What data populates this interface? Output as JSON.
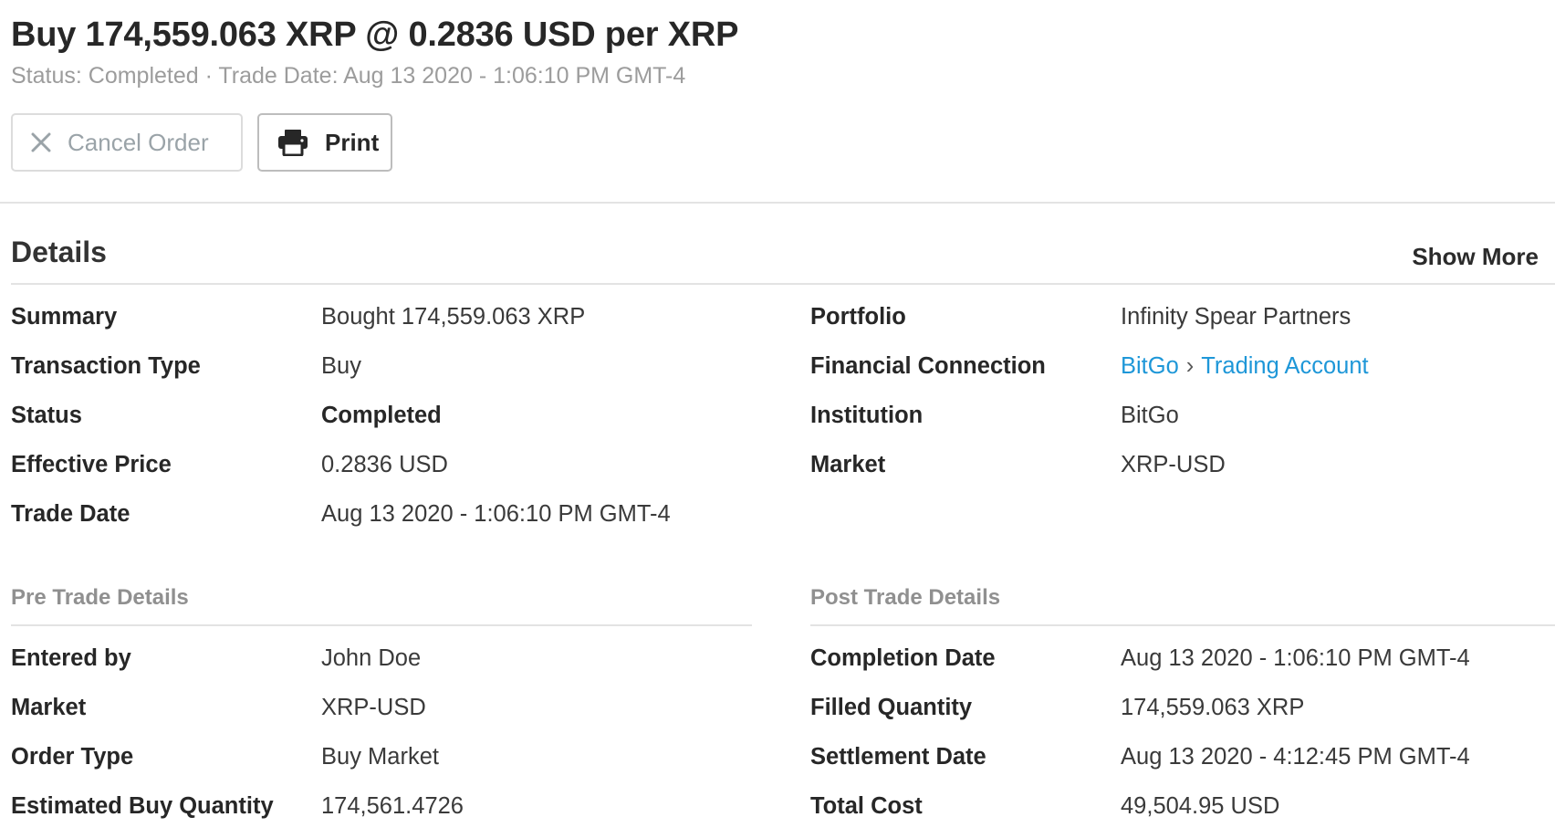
{
  "header": {
    "title": "Buy 174,559.063 XRP @ 0.2836 USD per XRP",
    "subtitle": "Status: Completed · Trade Date: Aug 13 2020 - 1:06:10 PM GMT-4"
  },
  "actions": {
    "cancel_label": "Cancel Order",
    "cancel_icon": "close-icon",
    "print_label": "Print",
    "print_icon": "printer-icon"
  },
  "details": {
    "title": "Details",
    "show_more": "Show More",
    "left": [
      {
        "label": "Summary",
        "value": "Bought 174,559.063 XRP"
      },
      {
        "label": "Transaction Type",
        "value": "Buy"
      },
      {
        "label": "Status",
        "value": "Completed"
      },
      {
        "label": "Effective Price",
        "value": "0.2836 USD"
      },
      {
        "label": "Trade Date",
        "value": "Aug 13 2020 - 1:06:10 PM GMT-4"
      }
    ],
    "right": [
      {
        "label": "Portfolio",
        "value": "Infinity Spear Partners"
      },
      {
        "label": "Financial Connection",
        "link1": "BitGo",
        "separator": "›",
        "link2": "Trading Account"
      },
      {
        "label": "Institution",
        "value": "BitGo"
      },
      {
        "label": "Market",
        "value": "XRP-USD"
      }
    ]
  },
  "pre_trade": {
    "title": "Pre Trade Details",
    "rows": [
      {
        "label": "Entered by",
        "value": "John Doe"
      },
      {
        "label": "Market",
        "value": "XRP-USD"
      },
      {
        "label": "Order Type",
        "value": "Buy Market"
      },
      {
        "label": "Estimated Buy Quantity",
        "value": "174,561.4726"
      }
    ]
  },
  "post_trade": {
    "title": "Post Trade Details",
    "rows": [
      {
        "label": "Completion Date",
        "value": "Aug 13 2020 - 1:06:10 PM GMT-4"
      },
      {
        "label": "Filled Quantity",
        "value": "174,559.063 XRP"
      },
      {
        "label": "Settlement Date",
        "value": "Aug 13 2020 - 4:12:45 PM GMT-4"
      },
      {
        "label": "Total Cost",
        "value": "49,504.95 USD"
      }
    ]
  },
  "colors": {
    "link": "#1e97d8",
    "muted": "#9c9c9c",
    "divider": "#e3e3e3"
  }
}
